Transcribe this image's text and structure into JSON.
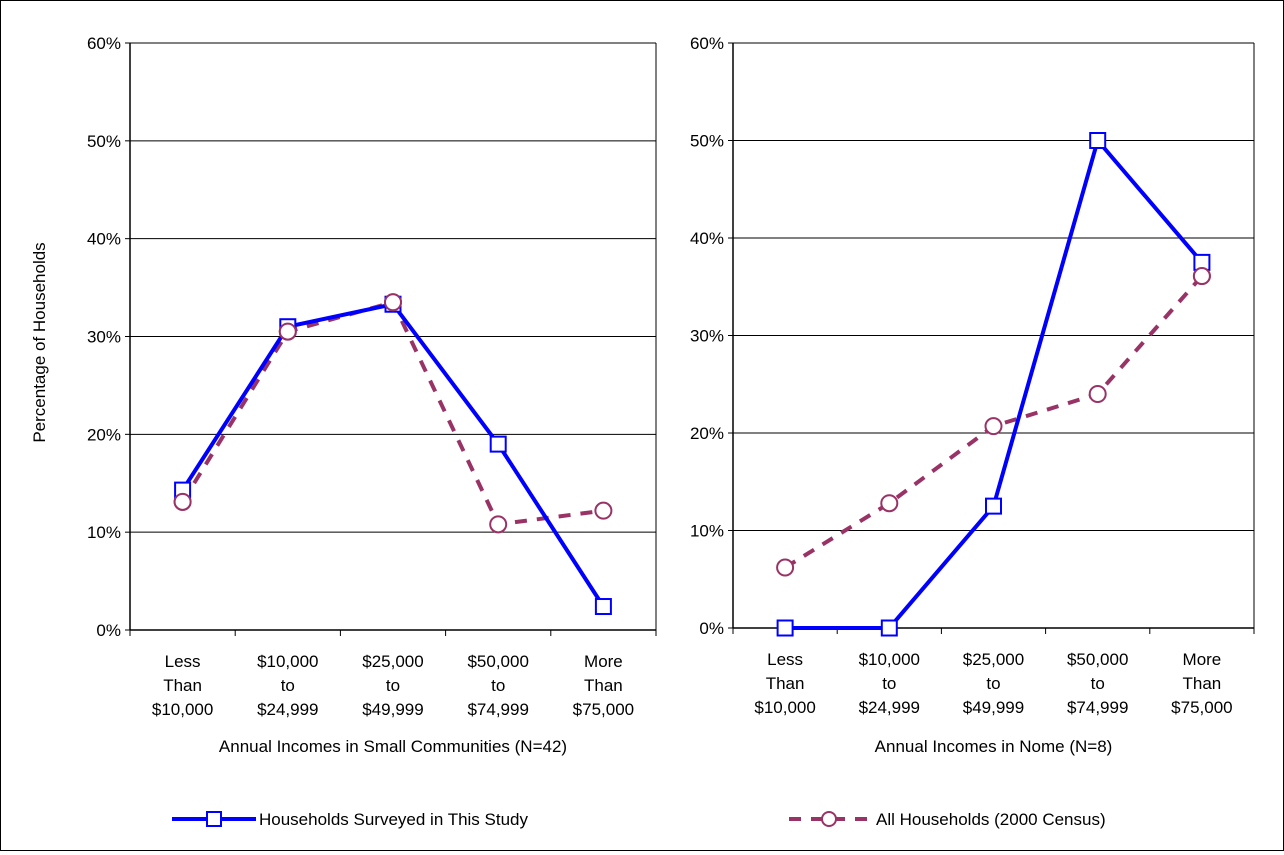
{
  "chart_data": [
    {
      "type": "line",
      "ylabel": "Percentage of Households",
      "xlabel": "Annual Incomes in Small Communities (N=42)",
      "ylim": [
        0,
        60
      ],
      "yticks": [
        "0%",
        "10%",
        "20%",
        "30%",
        "40%",
        "50%",
        "60%"
      ],
      "categories": [
        "Less Than $10,000",
        "$10,000 to $24,999",
        "$25,000 to $49,999",
        "$50,000 to $74,999",
        "More Than $75,000"
      ],
      "category_lines": [
        [
          "Less",
          "Than",
          "$10,000"
        ],
        [
          "$10,000",
          "to",
          "$24,999"
        ],
        [
          "$25,000",
          "to",
          "$49,999"
        ],
        [
          "$50,000",
          "to",
          "$74,999"
        ],
        [
          "More",
          "Than",
          "$75,000"
        ]
      ],
      "grid": true,
      "series": [
        {
          "name": "Households Surveyed in This Study",
          "values": [
            14.3,
            31.0,
            33.3,
            19.0,
            2.4
          ]
        },
        {
          "name": "All Households (2000 Census)",
          "values": [
            13.1,
            30.5,
            33.5,
            10.8,
            12.2
          ]
        }
      ]
    },
    {
      "type": "line",
      "ylabel": "",
      "xlabel": "Annual Incomes in Nome (N=8)",
      "ylim": [
        0,
        60
      ],
      "yticks": [
        "0%",
        "10%",
        "20%",
        "30%",
        "40%",
        "50%",
        "60%"
      ],
      "categories": [
        "Less Than $10,000",
        "$10,000 to $24,999",
        "$25,000 to $49,999",
        "$50,000 to $74,999",
        "More Than $75,000"
      ],
      "category_lines": [
        [
          "Less",
          "Than",
          "$10,000"
        ],
        [
          "$10,000",
          "to",
          "$24,999"
        ],
        [
          "$25,000",
          "to",
          "$49,999"
        ],
        [
          "$50,000",
          "to",
          "$74,999"
        ],
        [
          "More",
          "Than",
          "$75,000"
        ]
      ],
      "grid": true,
      "series": [
        {
          "name": "Households Surveyed in This Study",
          "values": [
            0,
            0,
            12.5,
            50.0,
            37.5
          ]
        },
        {
          "name": "All Households (2000 Census)",
          "values": [
            6.2,
            12.8,
            20.7,
            24.0,
            36.1
          ]
        }
      ]
    }
  ],
  "legend": {
    "placement": "bottom",
    "items": [
      {
        "label": "Households Surveyed in This Study",
        "color": "#0000ff",
        "marker": "square",
        "dash": "solid"
      },
      {
        "label": "All Households (2000 Census)",
        "color": "#993366",
        "marker": "circle",
        "dash": "dashed"
      }
    ]
  },
  "colors": {
    "survey": "#0000ff",
    "census": "#993366",
    "grid": "#000000"
  }
}
